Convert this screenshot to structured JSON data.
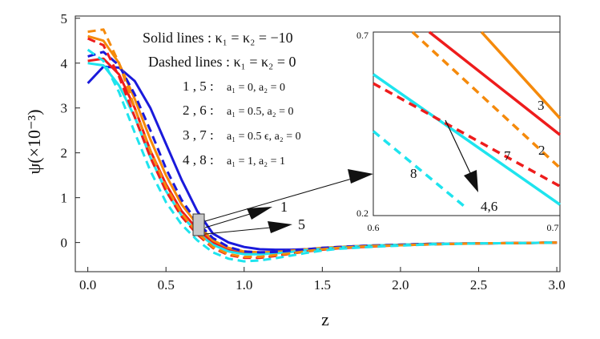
{
  "chart_data": {
    "type": "line",
    "xlabel": "z",
    "ylabel": "ψ(×10⁻³)",
    "xlim": [
      -0.08,
      3.02
    ],
    "ylim": [
      -0.65,
      5.05
    ],
    "xticks": [
      "0.0",
      "0.5",
      "1.0",
      "1.5",
      "2.0",
      "2.5",
      "3.0"
    ],
    "yticks": [
      "0",
      "1",
      "2",
      "3",
      "4",
      "5"
    ],
    "grid": false,
    "annotations": {
      "solid": "Solid lines : κ₁ = κ₂ = −10",
      "dashed": "Dashed lines : κ₁ = κ₂ = 0",
      "case_15": {
        "ids": "1 , 5 :",
        "params": "a₁ = 0, a₂ = 0"
      },
      "case_26": {
        "ids": "2 , 6 :",
        "params": "a₁ = 0.5, a₂ = 0"
      },
      "case_37": {
        "ids": "3 , 7 :",
        "params": "a₁ = 0.5 ϵ, a₂ = 0"
      },
      "case_48": {
        "ids": "4 , 8 :",
        "params": "a₁ = 1, a₂ = 1"
      },
      "arrow_label_1": "1",
      "arrow_label_5": "5"
    },
    "series": [
      {
        "color": "#1a1adb",
        "dash": false,
        "x": [
          0.0,
          0.1,
          0.2,
          0.3,
          0.4,
          0.5,
          0.6,
          0.7,
          0.8,
          0.9,
          1.0,
          1.1,
          1.2,
          1.3,
          1.4,
          1.5,
          1.6,
          1.8,
          2.0,
          2.2,
          2.5,
          2.8,
          3.0
        ],
        "y": [
          3.55,
          3.92,
          3.9,
          3.6,
          3.0,
          2.2,
          1.4,
          0.7,
          0.2,
          0.0,
          -0.1,
          -0.15,
          -0.16,
          -0.16,
          -0.15,
          -0.14,
          -0.12,
          -0.08,
          -0.05,
          -0.03,
          -0.02,
          -0.01,
          0.0
        ]
      },
      {
        "color": "#ee1c1c",
        "dash": false,
        "x": [
          0.0,
          0.1,
          0.2,
          0.3,
          0.4,
          0.5,
          0.6,
          0.7,
          0.8,
          0.9,
          1.0,
          1.1,
          1.2,
          1.3,
          1.4,
          1.5,
          1.6,
          1.8,
          2.0,
          2.2,
          2.5,
          2.8,
          3.0
        ],
        "y": [
          4.05,
          4.1,
          3.75,
          3.0,
          2.05,
          1.3,
          0.7,
          0.3,
          0.0,
          -0.15,
          -0.22,
          -0.24,
          -0.22,
          -0.19,
          -0.16,
          -0.13,
          -0.1,
          -0.07,
          -0.05,
          -0.03,
          -0.02,
          -0.01,
          0.0
        ]
      },
      {
        "color": "#f58a0b",
        "dash": false,
        "x": [
          0.0,
          0.1,
          0.2,
          0.3,
          0.4,
          0.5,
          0.6,
          0.7,
          0.8,
          0.9,
          1.0,
          1.1,
          1.2,
          1.3,
          1.4,
          1.5,
          1.6,
          1.8,
          2.0,
          2.2,
          2.5,
          2.8,
          3.0
        ],
        "y": [
          4.6,
          4.5,
          4.0,
          3.2,
          2.3,
          1.5,
          0.85,
          0.4,
          0.05,
          -0.12,
          -0.2,
          -0.22,
          -0.21,
          -0.18,
          -0.15,
          -0.12,
          -0.1,
          -0.07,
          -0.05,
          -0.03,
          -0.02,
          -0.01,
          0.0
        ]
      },
      {
        "color": "#1ee4ee",
        "dash": false,
        "x": [
          0.0,
          0.1,
          0.2,
          0.3,
          0.4,
          0.5,
          0.6,
          0.7,
          0.8,
          0.9,
          1.0,
          1.1,
          1.2,
          1.3,
          1.4,
          1.5,
          1.6,
          1.8,
          2.0,
          2.2,
          2.5,
          2.8,
          3.0
        ],
        "y": [
          4.0,
          3.95,
          3.5,
          2.8,
          1.9,
          1.15,
          0.6,
          0.22,
          -0.05,
          -0.2,
          -0.26,
          -0.26,
          -0.24,
          -0.21,
          -0.17,
          -0.14,
          -0.11,
          -0.07,
          -0.05,
          -0.03,
          -0.02,
          -0.01,
          0.0
        ]
      },
      {
        "color": "#1a1adb",
        "dash": true,
        "x": [
          0.0,
          0.1,
          0.2,
          0.3,
          0.4,
          0.5,
          0.6,
          0.7,
          0.8,
          0.9,
          1.0,
          1.1,
          1.2,
          1.3,
          1.4,
          1.5,
          1.6,
          1.8,
          2.0,
          2.2,
          2.5,
          2.8,
          3.0
        ],
        "y": [
          4.15,
          4.25,
          3.95,
          3.3,
          2.5,
          1.65,
          0.95,
          0.45,
          0.1,
          -0.1,
          -0.2,
          -0.22,
          -0.21,
          -0.18,
          -0.15,
          -0.12,
          -0.1,
          -0.07,
          -0.05,
          -0.03,
          -0.02,
          -0.01,
          0.0
        ]
      },
      {
        "color": "#ee1c1c",
        "dash": true,
        "x": [
          0.0,
          0.1,
          0.2,
          0.3,
          0.4,
          0.5,
          0.6,
          0.7,
          0.8,
          0.9,
          1.0,
          1.1,
          1.2,
          1.3,
          1.4,
          1.5,
          1.6,
          1.8,
          2.0,
          2.2,
          2.5,
          2.8,
          3.0
        ],
        "y": [
          4.55,
          4.4,
          3.7,
          2.8,
          1.9,
          1.15,
          0.58,
          0.18,
          -0.12,
          -0.28,
          -0.34,
          -0.34,
          -0.3,
          -0.25,
          -0.2,
          -0.16,
          -0.13,
          -0.09,
          -0.06,
          -0.04,
          -0.02,
          -0.01,
          0.0
        ]
      },
      {
        "color": "#f58a0b",
        "dash": true,
        "x": [
          0.0,
          0.1,
          0.2,
          0.3,
          0.4,
          0.5,
          0.6,
          0.7,
          0.8,
          0.9,
          1.0,
          1.1,
          1.2,
          1.3,
          1.4,
          1.5,
          1.6,
          1.8,
          2.0,
          2.2,
          2.5,
          2.8,
          3.0
        ],
        "y": [
          4.7,
          4.75,
          4.0,
          3.0,
          2.05,
          1.25,
          0.65,
          0.22,
          -0.1,
          -0.26,
          -0.32,
          -0.32,
          -0.28,
          -0.24,
          -0.19,
          -0.15,
          -0.12,
          -0.08,
          -0.06,
          -0.04,
          -0.02,
          -0.01,
          0.0
        ]
      },
      {
        "color": "#1ee4ee",
        "dash": true,
        "x": [
          0.0,
          0.1,
          0.2,
          0.3,
          0.4,
          0.5,
          0.6,
          0.7,
          0.8,
          0.9,
          1.0,
          1.1,
          1.2,
          1.3,
          1.4,
          1.5,
          1.6,
          1.8,
          2.0,
          2.2,
          2.5,
          2.8,
          3.0
        ],
        "y": [
          4.3,
          4.05,
          3.35,
          2.45,
          1.6,
          0.9,
          0.4,
          0.05,
          -0.22,
          -0.36,
          -0.42,
          -0.4,
          -0.35,
          -0.29,
          -0.23,
          -0.18,
          -0.14,
          -0.1,
          -0.07,
          -0.04,
          -0.02,
          -0.01,
          0.0
        ]
      }
    ],
    "inset": {
      "xlim": [
        0.6,
        0.7
      ],
      "ylim": [
        0.2,
        0.7
      ],
      "xticks": [
        "0.6",
        "0.7"
      ],
      "yticks": [
        "0.7",
        "0.2"
      ],
      "labels": [
        "3",
        "7",
        "2",
        "8",
        "4,6"
      ],
      "series": [
        {
          "color": "#f58a0b",
          "dash": false,
          "x": [
            0.658,
            0.7
          ],
          "y": [
            0.7,
            0.465
          ]
        },
        {
          "color": "#ee1c1c",
          "dash": false,
          "x": [
            0.63,
            0.7
          ],
          "y": [
            0.7,
            0.42
          ]
        },
        {
          "color": "#f58a0b",
          "dash": true,
          "x": [
            0.621,
            0.7
          ],
          "y": [
            0.7,
            0.33
          ]
        },
        {
          "color": "#1ee4ee",
          "dash": false,
          "x": [
            0.6,
            0.7
          ],
          "y": [
            0.585,
            0.23
          ]
        },
        {
          "color": "#ee1c1c",
          "dash": true,
          "x": [
            0.6,
            0.7
          ],
          "y": [
            0.56,
            0.28
          ]
        },
        {
          "color": "#1ee4ee",
          "dash": true,
          "x": [
            0.6,
            0.65
          ],
          "y": [
            0.43,
            0.22
          ]
        }
      ]
    }
  }
}
